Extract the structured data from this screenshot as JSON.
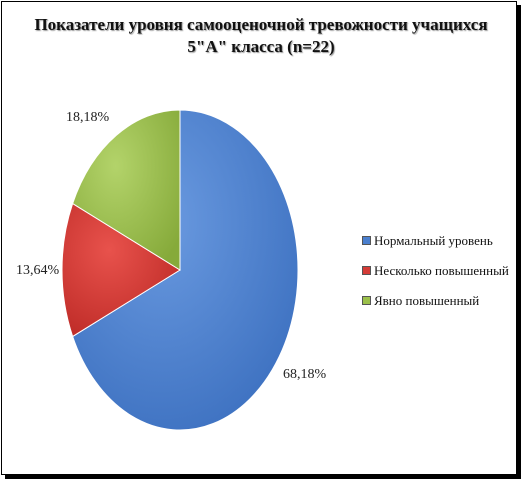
{
  "chart_data": {
    "type": "pie",
    "title": [
      "Показатели уровня самооценочной тревожности учащихся",
      "5\"А\" класса (n=22)"
    ],
    "slices": [
      {
        "name": "Нормальный уровень",
        "value": 68.18,
        "label": "68,18%",
        "color": "#4a7fce"
      },
      {
        "name": "Несколько повышенный",
        "value": 13.64,
        "label": "13,64%",
        "color": "#d43b36"
      },
      {
        "name": "Явно повышенный",
        "value": 18.18,
        "label": "18,18%",
        "color": "#9bc04a"
      }
    ],
    "legend_position": "right"
  }
}
